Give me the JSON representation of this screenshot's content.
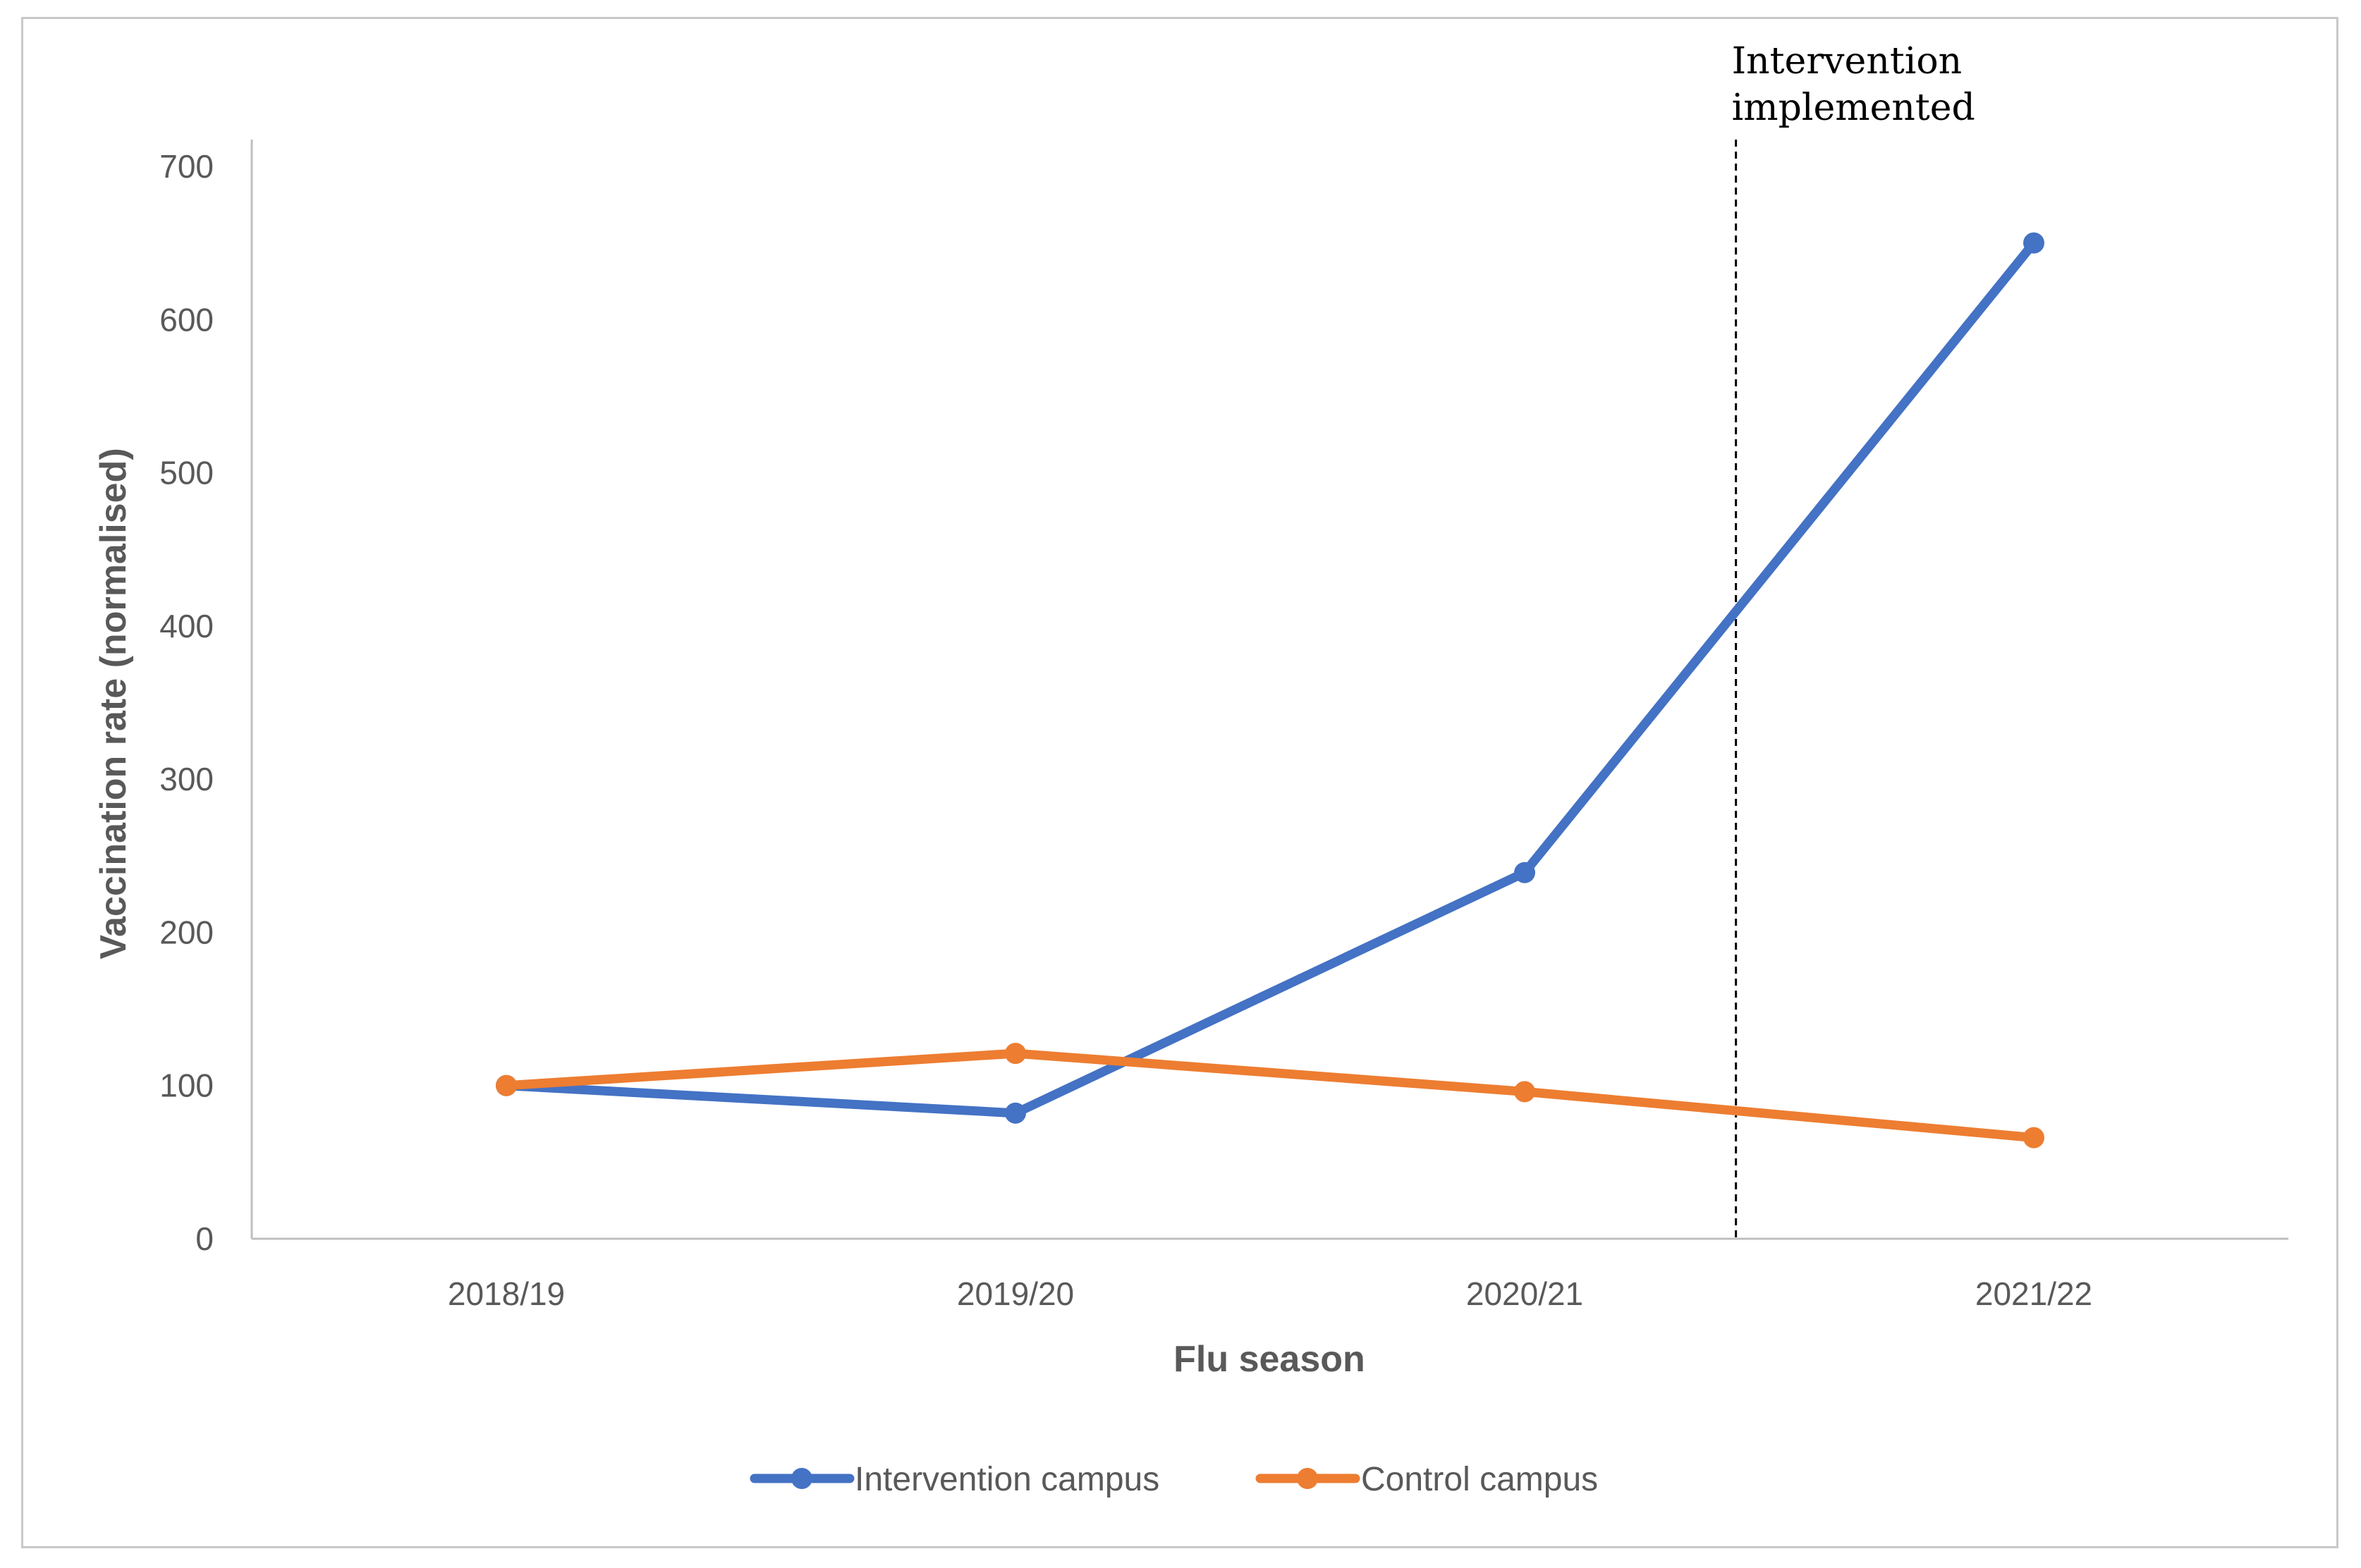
{
  "chart_data": {
    "type": "line",
    "title": "",
    "xlabel": "Flu season",
    "ylabel": "Vaccination rate (normalised)",
    "categories": [
      "2018/19",
      "2019/20",
      "2020/21",
      "2021/22"
    ],
    "ylim": [
      0,
      700
    ],
    "yticks": [
      0,
      100,
      200,
      300,
      400,
      500,
      600,
      700
    ],
    "grid": false,
    "legend_position": "bottom",
    "series": [
      {
        "name": "Intervention campus",
        "color": "#4472C4",
        "values": [
          100,
          82,
          239,
          650
        ]
      },
      {
        "name": "Control campus",
        "color": "#ED7D31",
        "values": [
          100,
          121,
          96,
          66
        ]
      }
    ],
    "annotation": {
      "lines": [
        "Intervention",
        "implemented"
      ],
      "between_categories": [
        "2020/21",
        "2021/22"
      ],
      "style": "dashed vertical line"
    }
  }
}
